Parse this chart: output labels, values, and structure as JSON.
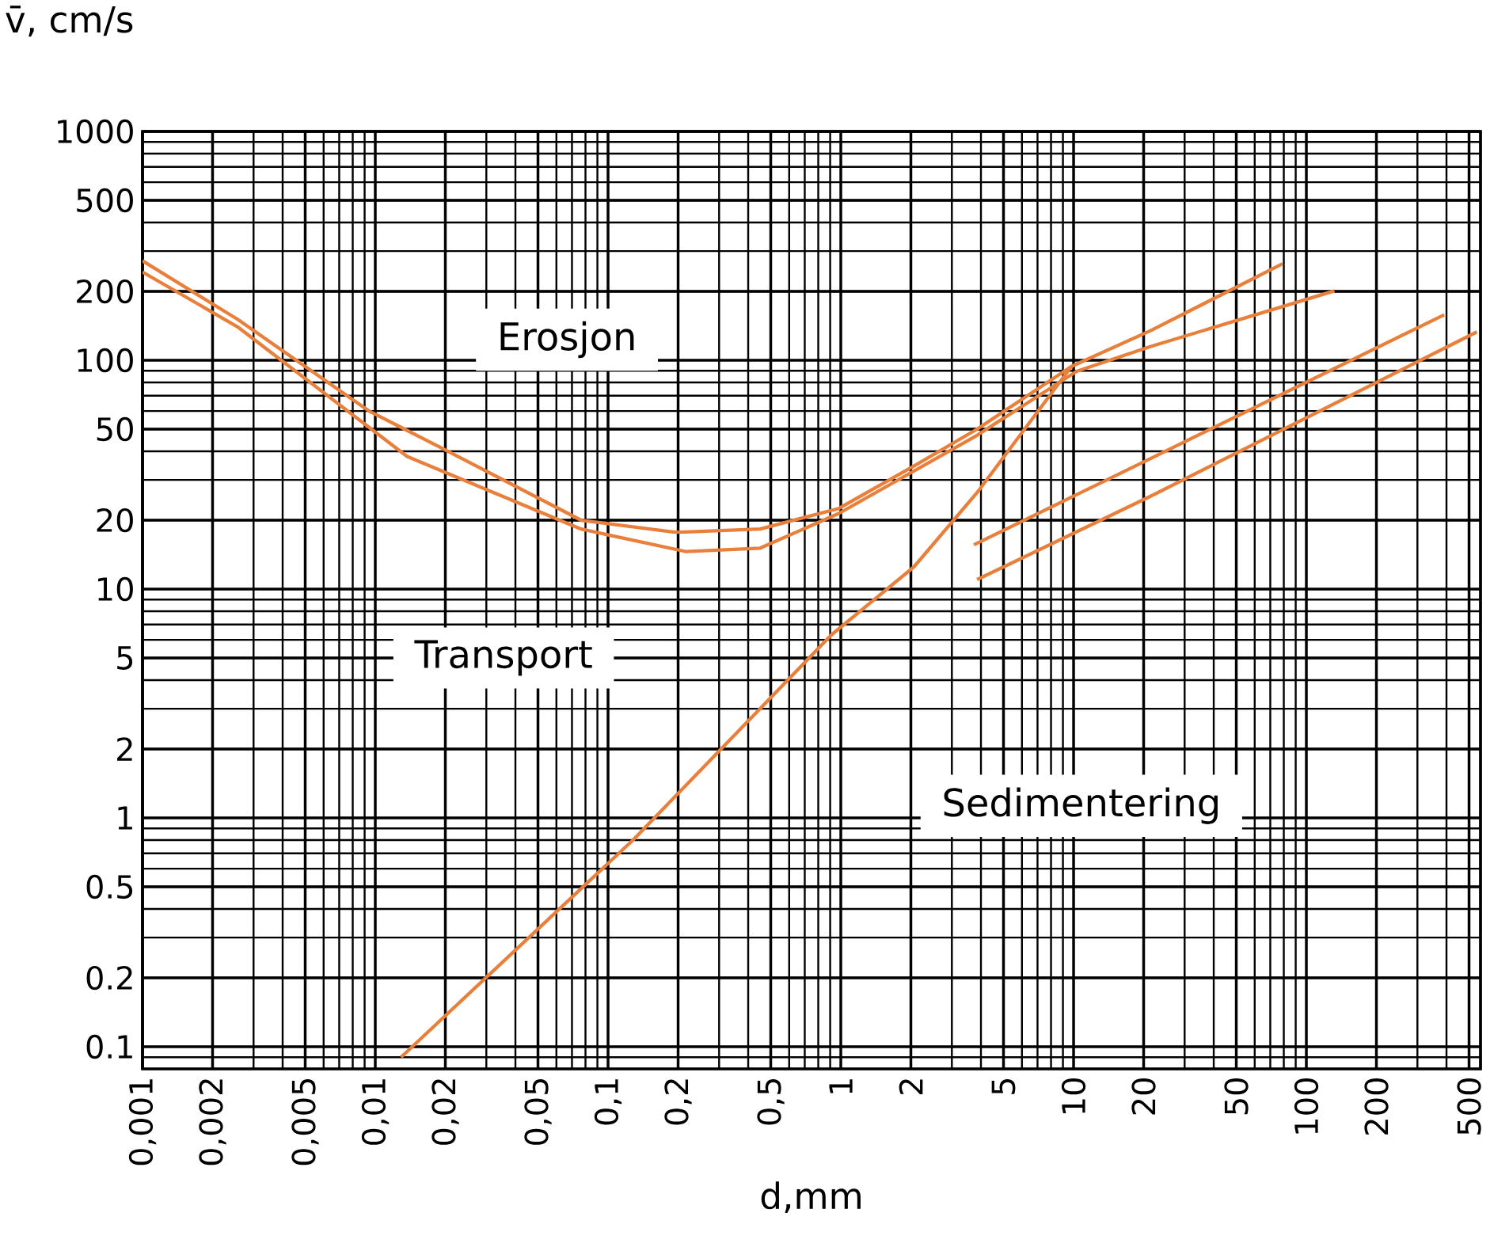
{
  "chart_data": {
    "type": "line",
    "xlabel": "d,mm",
    "ylabel": "v̄, cm/s",
    "log": "xy",
    "grid": true,
    "marker": "none",
    "line_style": "solid",
    "xlim": [
      0.001,
      560
    ],
    "ylim": [
      0.08,
      1000
    ],
    "xticks": [
      {
        "value": 0.001,
        "label": "0,001"
      },
      {
        "value": 0.002,
        "label": "0,002"
      },
      {
        "value": 0.005,
        "label": "0,005"
      },
      {
        "value": 0.01,
        "label": "0,01"
      },
      {
        "value": 0.02,
        "label": "0,02"
      },
      {
        "value": 0.05,
        "label": "0,05"
      },
      {
        "value": 0.1,
        "label": "0,1"
      },
      {
        "value": 0.2,
        "label": "0,2"
      },
      {
        "value": 0.5,
        "label": "0,5"
      },
      1,
      2,
      5,
      10,
      20,
      50,
      100,
      200,
      500
    ],
    "yticks": [
      0.1,
      0.2,
      0.5,
      1,
      2,
      5,
      10,
      20,
      50,
      100,
      200,
      500,
      1000
    ],
    "annotations": [
      "Erosjon",
      "Transport",
      "Sedimentering"
    ],
    "series": [
      {
        "color": "#e8803c",
        "x": [
          0.001,
          0.00256,
          0.0094,
          0.0187,
          0.0766,
          0.196,
          0.45,
          0.98,
          2.06,
          3.85,
          9.8,
          21.5,
          79
        ],
        "values": [
          272,
          151,
          60,
          42,
          20,
          17.7,
          18.3,
          22.5,
          34.5,
          50,
          94,
          135,
          264
        ]
      },
      {
        "color": "#e8803c",
        "x": [
          0.001,
          0.00256,
          0.0137,
          0.0766,
          0.215,
          0.45,
          0.98,
          3.85,
          10.3,
          21.5,
          132
        ],
        "values": [
          243,
          140,
          38,
          18.3,
          14.6,
          15.1,
          21.4,
          47,
          89.5,
          115,
          201
        ]
      },
      {
        "color": "#e8803c",
        "x": [
          0.0129,
          0.128,
          0.91,
          2.06,
          3.85,
          9.8
        ],
        "values": [
          0.09,
          0.8,
          6.3,
          12.5,
          26.4,
          94
        ]
      },
      {
        "color": "#e8803c",
        "x": [
          3.73,
          21.5,
          391
        ],
        "values": [
          15.6,
          37.3,
          158
        ]
      },
      {
        "color": "#e8803c",
        "x": [
          3.85,
          21.5,
          540
        ],
        "values": [
          11,
          25.5,
          133
        ]
      }
    ]
  }
}
